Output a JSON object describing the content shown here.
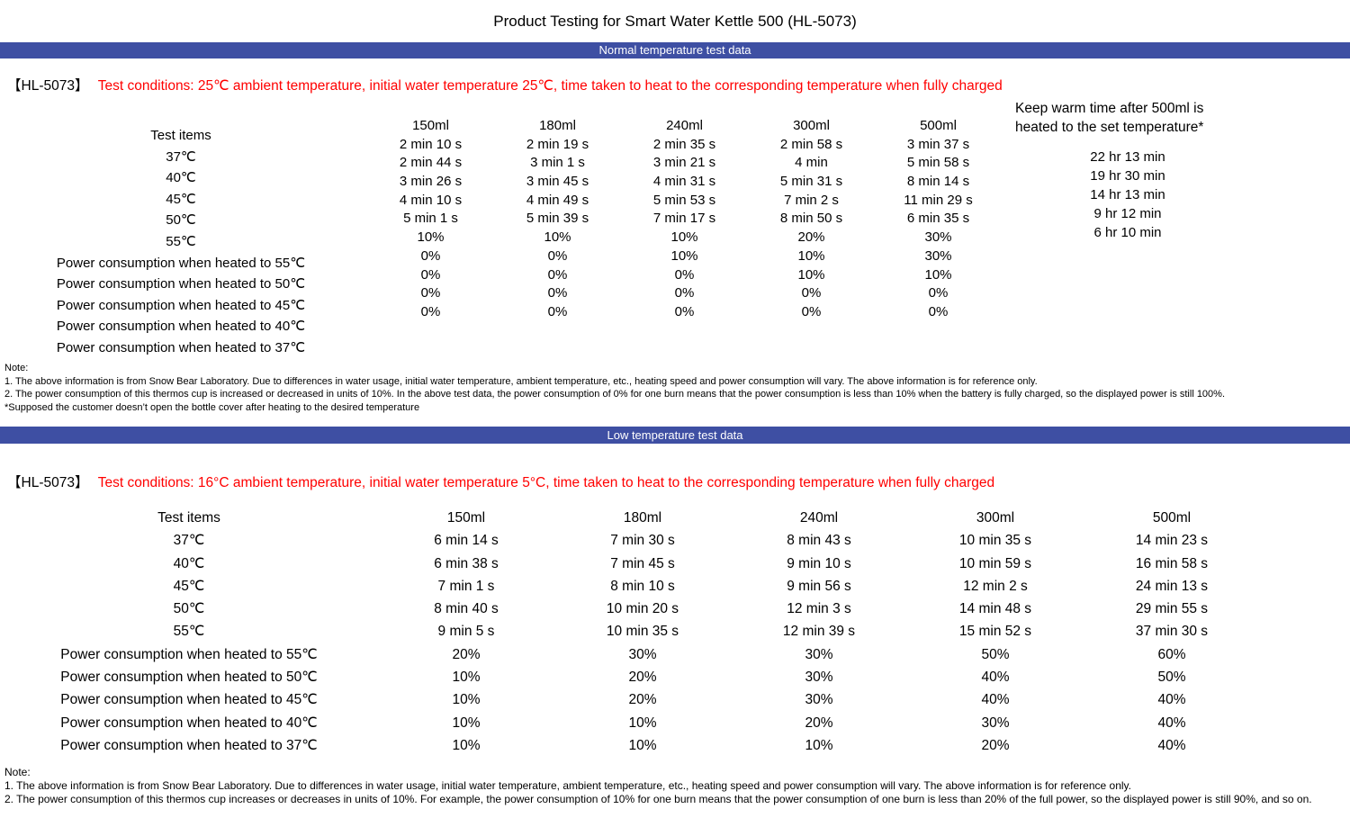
{
  "page": {
    "title": "Product Testing for Smart Water Kettle 500 (HL-5073)"
  },
  "colors": {
    "section_bar": "#3e4fa3",
    "condition_text": "#ff0000",
    "body_text": "#000000",
    "background": "#ffffff"
  },
  "sections": [
    {
      "bar_label": "Normal temperature test data",
      "model": "【HL-5073】",
      "conditions": "Test conditions: 25℃ ambient temperature, initial water temperature 25℃, time taken to heat to the corresponding temperature when fully charged",
      "table": {
        "row_header": "Test items",
        "volume_headers": [
          "150ml",
          "180ml",
          "240ml",
          "300ml",
          "500ml"
        ],
        "keep_warm_header": "Keep warm time after 500ml is heated to the set temperature*",
        "rows": [
          {
            "label": "37℃",
            "values": [
              "2 min 10 s",
              "2 min 19 s",
              "2 min 35 s",
              "2 min 58 s",
              "3 min 37 s"
            ],
            "keep_warm": "22 hr 13 min"
          },
          {
            "label": "40℃",
            "values": [
              "2 min 44 s",
              "3 min 1 s",
              "3 min 21 s",
              "4 min",
              "5 min 58 s"
            ],
            "keep_warm": "19 hr 30 min"
          },
          {
            "label": "45℃",
            "values": [
              "3 min 26 s",
              "3 min 45 s",
              "4 min 31 s",
              "5 min 31 s",
              "8 min 14 s"
            ],
            "keep_warm": "14 hr 13 min"
          },
          {
            "label": "50℃",
            "values": [
              "4 min 10 s",
              "4 min 49 s",
              "5 min 53 s",
              "7 min 2 s",
              "11 min 29 s"
            ],
            "keep_warm": "9 hr 12 min"
          },
          {
            "label": "55℃",
            "values": [
              "5 min 1 s",
              "5 min 39 s",
              "7 min 17 s",
              "8 min 50 s",
              "6 min 35 s"
            ],
            "keep_warm": "6 hr 10 min"
          },
          {
            "label": "Power consumption when heated to 55℃",
            "values": [
              "10%",
              "10%",
              "10%",
              "20%",
              "30%"
            ]
          },
          {
            "label": "Power consumption when heated to 50℃",
            "values": [
              "0%",
              "0%",
              "10%",
              "10%",
              "30%"
            ]
          },
          {
            "label": "Power consumption when heated to 45℃",
            "values": [
              "0%",
              "0%",
              "0%",
              "10%",
              "10%"
            ]
          },
          {
            "label": "Power consumption when heated to 40℃",
            "values": [
              "0%",
              "0%",
              "0%",
              "0%",
              "0%"
            ]
          },
          {
            "label": "Power consumption when heated to 37℃",
            "values": [
              "0%",
              "0%",
              "0%",
              "0%",
              "0%"
            ]
          }
        ]
      },
      "notes": [
        "Note:",
        "1. The above information is from Snow Bear Laboratory. Due to differences in water usage, initial water temperature, ambient temperature, etc., heating speed and power consumption will vary. The above information is for reference only.",
        "2. The power consumption of this thermos cup is increased or decreased in units of 10%. In the above test data, the power consumption of 0% for one burn means that the power consumption is less than 10% when the battery is fully charged, so the displayed power is still 100%.",
        "*Supposed the customer doesn’t open the bottle cover after heating to the desired temperature"
      ]
    },
    {
      "bar_label": "Low temperature test data",
      "model": "【HL-5073】",
      "conditions": "Test conditions: 16°C ambient temperature, initial water temperature 5°C, time taken to heat to the corresponding temperature when fully charged",
      "table": {
        "row_header": "Test items",
        "volume_headers": [
          "150ml",
          "180ml",
          "240ml",
          "300ml",
          "500ml"
        ],
        "rows": [
          {
            "label": "37℃",
            "values": [
              "6 min 14 s",
              "7 min 30 s",
              "8 min 43 s",
              "10 min 35 s",
              "14 min 23 s"
            ]
          },
          {
            "label": "40℃",
            "values": [
              "6 min 38 s",
              "7 min 45 s",
              "9 min 10 s",
              "10 min 59 s",
              "16 min 58 s"
            ]
          },
          {
            "label": "45℃",
            "values": [
              "7 min 1 s",
              "8 min 10 s",
              "9 min 56 s",
              "12 min 2 s",
              "24 min 13 s"
            ]
          },
          {
            "label": "50℃",
            "values": [
              "8 min 40 s",
              "10 min 20 s",
              "12 min 3 s",
              "14 min 48 s",
              "29 min 55 s"
            ]
          },
          {
            "label": "55℃",
            "values": [
              "9 min 5 s",
              "10 min 35 s",
              "12 min 39 s",
              "15 min 52 s",
              "37 min 30 s"
            ]
          },
          {
            "label": "Power consumption when heated to 55℃",
            "values": [
              "20%",
              "30%",
              "30%",
              "50%",
              "60%"
            ]
          },
          {
            "label": "Power consumption when heated to 50℃",
            "values": [
              "10%",
              "20%",
              "30%",
              "40%",
              "50%"
            ]
          },
          {
            "label": "Power consumption when heated to 45℃",
            "values": [
              "10%",
              "20%",
              "30%",
              "40%",
              "40%"
            ]
          },
          {
            "label": "Power consumption when heated to 40℃",
            "values": [
              "10%",
              "10%",
              "20%",
              "30%",
              "40%"
            ]
          },
          {
            "label": "Power consumption when heated to 37℃",
            "values": [
              "10%",
              "10%",
              "10%",
              "20%",
              "40%"
            ]
          }
        ]
      },
      "notes": [
        "Note:",
        "1. The above information is from Snow Bear Laboratory. Due to differences in water usage, initial water temperature, ambient temperature, etc., heating speed and power consumption will vary. The above information is for reference only.",
        "2. The power consumption of this thermos cup increases or decreases in units of 10%. For example, the power consumption of 10% for one burn means that the power consumption of one burn is less than 20% of the full power, so the displayed power is still 90%, and so on."
      ]
    }
  ]
}
